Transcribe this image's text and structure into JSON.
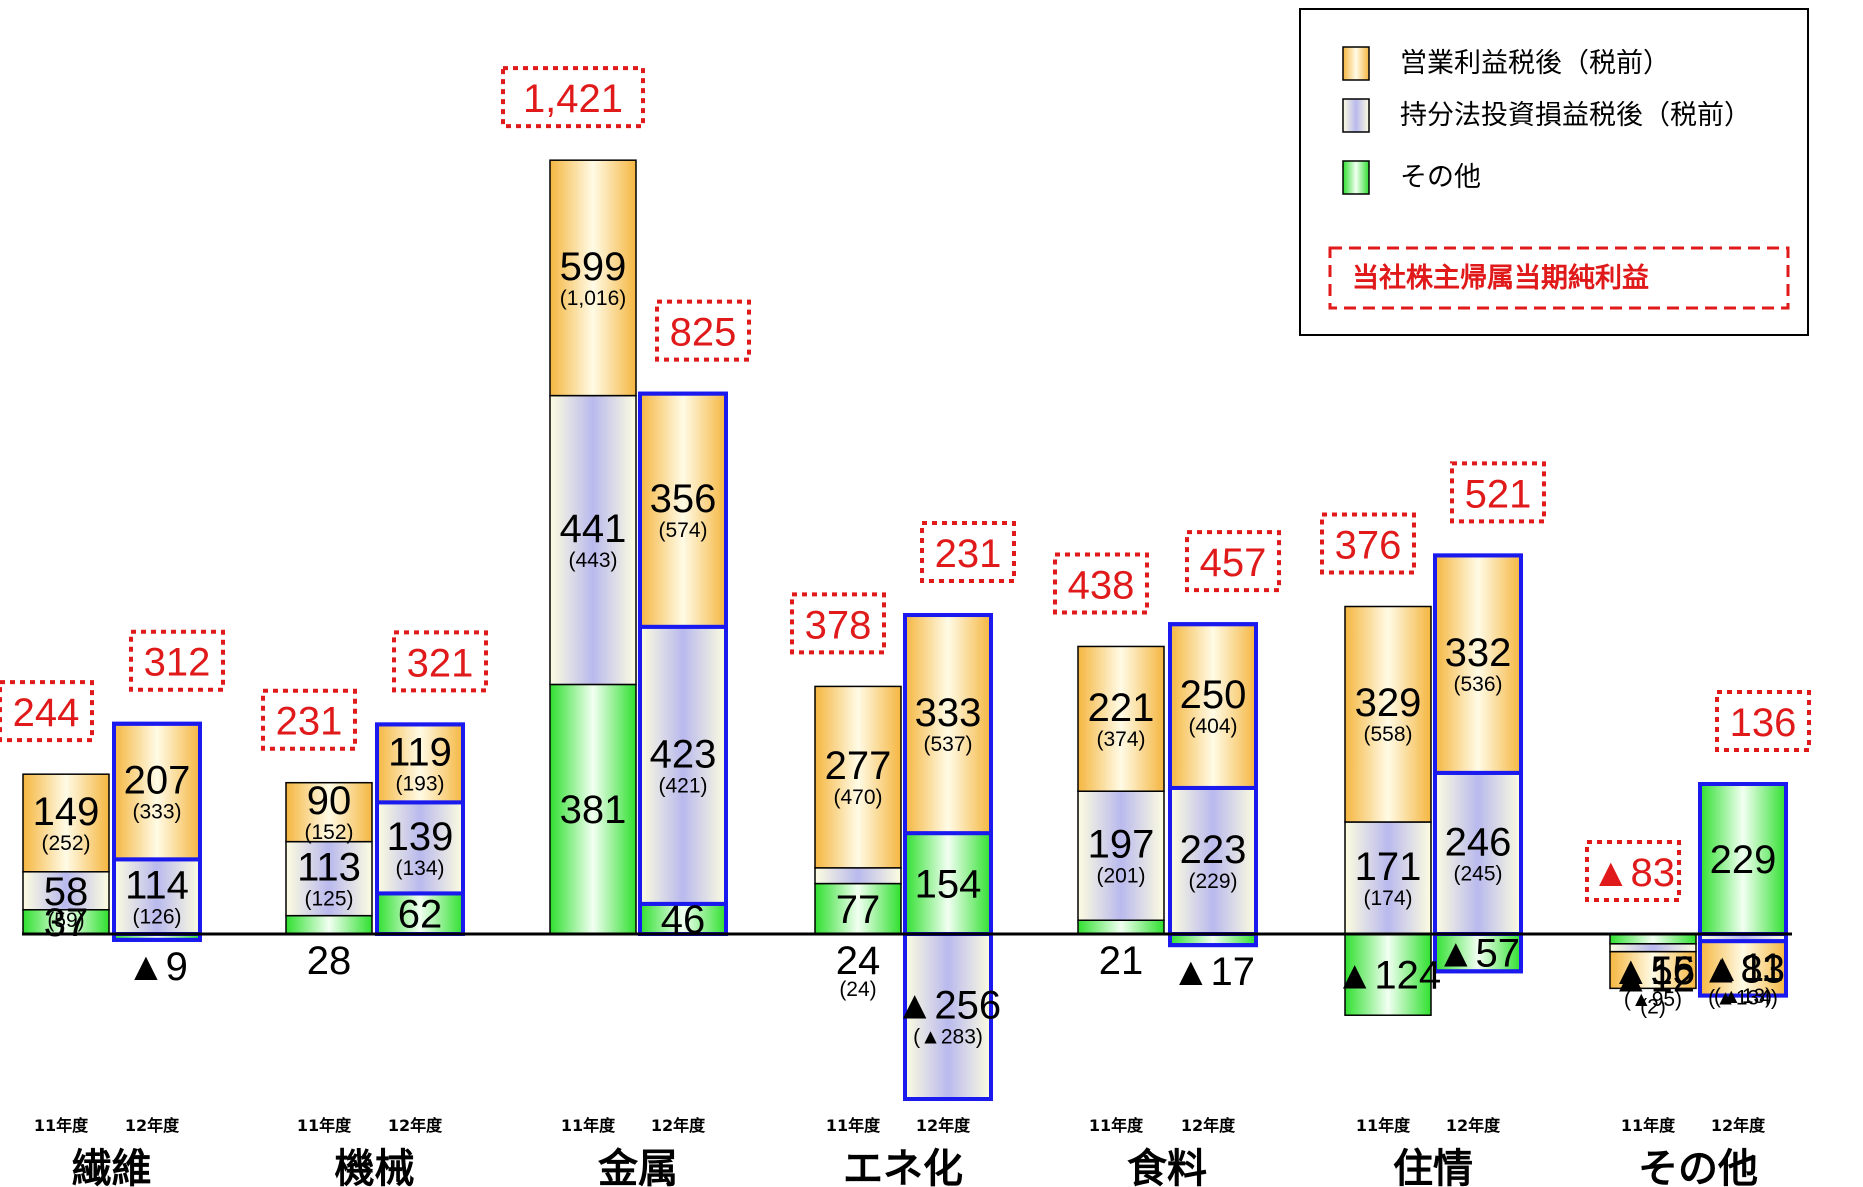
{
  "chart_data": {
    "type": "bar",
    "subtype": "stacked",
    "unit_note": "",
    "years": [
      "11年度",
      "12年度"
    ],
    "legend": {
      "operating": "営業利益税後（税前）",
      "equity": "持分法投資損益税後（税前）",
      "other": "その他",
      "total": "当社株主帰属当期純利益"
    },
    "colors": {
      "operating": "#f5b640",
      "equity": "#b9b9ee",
      "other": "#2fe02f",
      "total": "#e01a1a",
      "highlight_border": "#1a1aee"
    },
    "segments": [
      {
        "name": "繊維",
        "bars": [
          {
            "year": "11年度",
            "operating": 149,
            "operating_pretax": "(252)",
            "equity": 58,
            "equity_pretax": "(59)",
            "other": 37,
            "total": "244"
          },
          {
            "year": "12年度",
            "operating": 207,
            "operating_pretax": "(333)",
            "equity": 114,
            "equity_pretax": "(126)",
            "other": -9,
            "other_label": "▲9",
            "total": "312"
          }
        ]
      },
      {
        "name": "機械",
        "bars": [
          {
            "year": "11年度",
            "operating": 90,
            "operating_pretax": "(152)",
            "equity": 113,
            "equity_pretax": "(125)",
            "other": 28,
            "total": "231"
          },
          {
            "year": "12年度",
            "operating": 119,
            "operating_pretax": "(193)",
            "equity": 139,
            "equity_pretax": "(134)",
            "other": 62,
            "total": "321"
          }
        ]
      },
      {
        "name": "金属",
        "bars": [
          {
            "year": "11年度",
            "operating": 599,
            "operating_pretax": "(1,016)",
            "equity": 441,
            "equity_pretax": "(443)",
            "other": 381,
            "total": "1,421",
            "broken": true
          },
          {
            "year": "12年度",
            "operating": 356,
            "operating_pretax": "(574)",
            "equity": 423,
            "equity_pretax": "(421)",
            "other": 46,
            "total": "825"
          }
        ]
      },
      {
        "name": "エネ化",
        "bars": [
          {
            "year": "11年度",
            "operating": 277,
            "operating_pretax": "(470)",
            "equity": 24,
            "equity_pretax": "(24)",
            "other": 77,
            "total": "378"
          },
          {
            "year": "12年度",
            "operating": 333,
            "operating_pretax": "(537)",
            "equity": -256,
            "equity_label": "▲256",
            "equity_pretax": "(▲283)",
            "other": 154,
            "total": "231",
            "broken": true
          }
        ]
      },
      {
        "name": "食料",
        "bars": [
          {
            "year": "11年度",
            "operating": 221,
            "operating_pretax": "(374)",
            "equity": 197,
            "equity_pretax": "(201)",
            "other": 21,
            "total": "438"
          },
          {
            "year": "12年度",
            "operating": 250,
            "operating_pretax": "(404)",
            "equity": 223,
            "equity_pretax": "(229)",
            "other": -17,
            "other_label": "▲17",
            "total": "457"
          }
        ]
      },
      {
        "name": "住情",
        "bars": [
          {
            "year": "11年度",
            "operating": 329,
            "operating_pretax": "(558)",
            "equity": 171,
            "equity_pretax": "(174)",
            "other": -124,
            "other_label": "▲124",
            "total": "376"
          },
          {
            "year": "12年度",
            "operating": 332,
            "operating_pretax": "(536)",
            "equity": 246,
            "equity_pretax": "(245)",
            "other": -57,
            "other_label": "▲57",
            "total": "521"
          }
        ]
      },
      {
        "name": "その他",
        "bars": [
          {
            "year": "11年度",
            "operating": -56,
            "operating_label": "▲56",
            "operating_pretax": "(▲95)",
            "equity": -12,
            "equity_label": "▲12",
            "equity_pretax": "(2)",
            "other": -15,
            "other_label": "▲15",
            "total": "▲83"
          },
          {
            "year": "12年度",
            "operating": -83,
            "operating_label": "▲83",
            "operating_pretax": "(▲134)",
            "equity": -11,
            "equity_label": "▲11",
            "equity_pretax": "(▲13)",
            "other": 229,
            "total": "136"
          }
        ]
      }
    ]
  }
}
